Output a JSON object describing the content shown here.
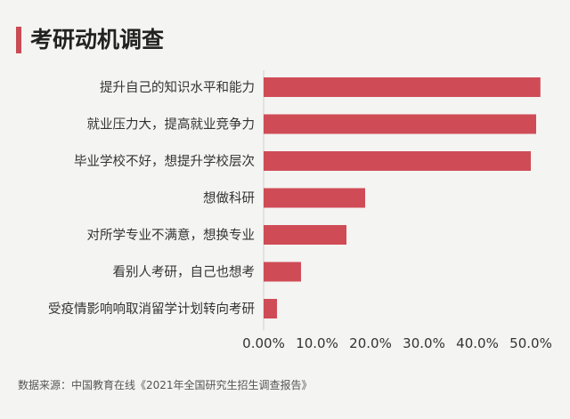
{
  "title": "考研动机调查",
  "source": "数据来源：中国教育在线《2021年全国研究生招生调查报告》",
  "colors": {
    "bar": "#cf4c57",
    "axis": "#cfcfcf",
    "text": "#333333",
    "accent": "#c94b55"
  },
  "chart_data": {
    "type": "bar",
    "orientation": "horizontal",
    "categories": [
      "提升自己的知识水平和能力",
      "就业压力大，提高就业竞争力",
      "毕业学校不好，想提升学校层次",
      "想做科研",
      "对所学专业不满意，想换专业",
      "看别人考研，自己也想考",
      "受疫情影响响取消留学计划转向考研"
    ],
    "values": [
      0.518,
      0.51,
      0.5,
      0.19,
      0.155,
      0.07,
      0.025
    ],
    "xlim": [
      0,
      0.5
    ],
    "xticks": [
      "0.00%",
      "10.0%",
      "20.0%",
      "30.0%",
      "40.0%",
      "50.0%"
    ],
    "grid": false,
    "legend": "none"
  }
}
